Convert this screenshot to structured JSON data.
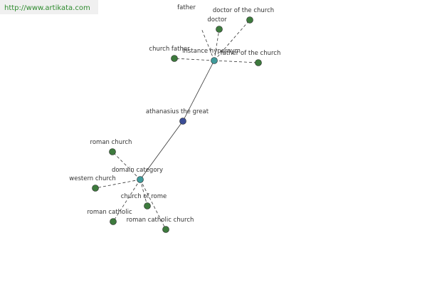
{
  "header": {
    "url": "http://www.artikata.com"
  },
  "nodes": [
    {
      "label": "athanasius the great"
    },
    {
      "label": "instance hypernym"
    },
    {
      "label": "domain category"
    },
    {
      "label": "father"
    },
    {
      "label": "doctor of the church"
    },
    {
      "label": "doctor"
    },
    {
      "label": "church father"
    },
    {
      "label": "father of the church"
    },
    {
      "label": "roman church"
    },
    {
      "label": "western church"
    },
    {
      "label": "church of rome"
    },
    {
      "label": "roman catholic"
    },
    {
      "label": "roman catholic church"
    }
  ]
}
